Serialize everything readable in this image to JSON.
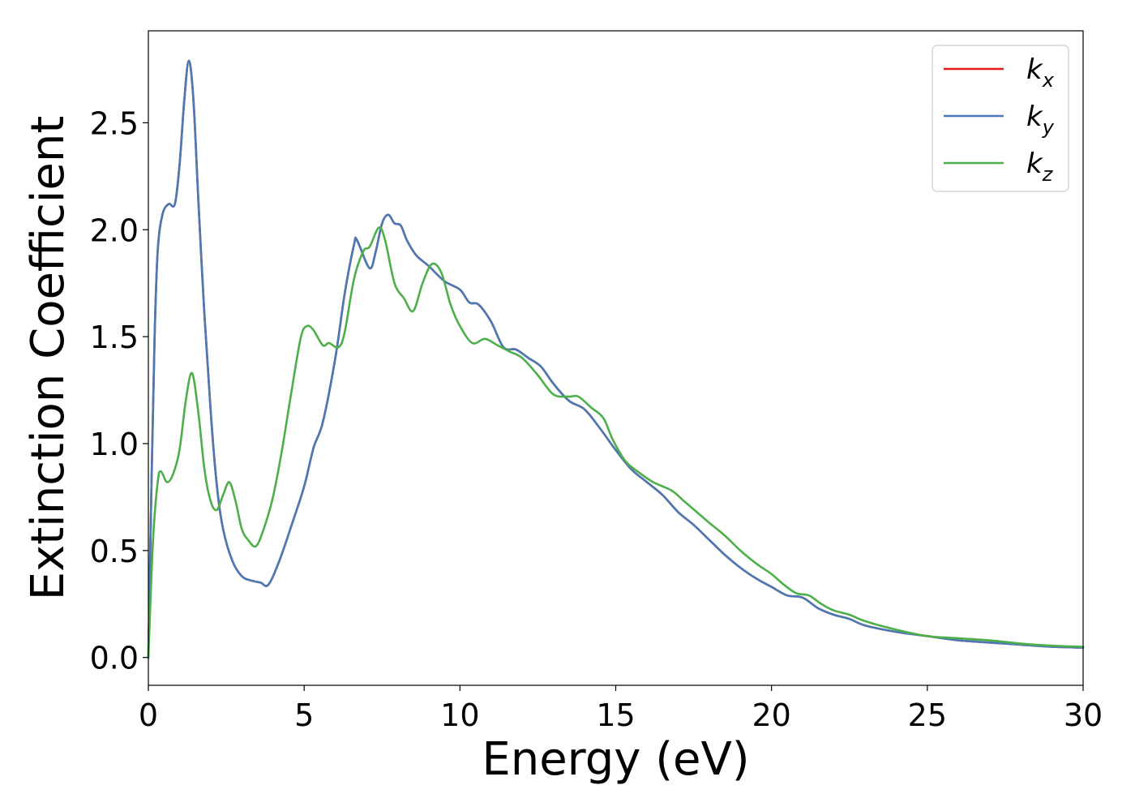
{
  "chart_data": {
    "type": "line",
    "title": "",
    "xlabel": "Energy (eV)",
    "ylabel": "Extinction Coefficient",
    "xlim": [
      0,
      30
    ],
    "ylim": [
      -0.13,
      2.93
    ],
    "xticks": [
      0,
      5,
      10,
      15,
      20,
      25,
      30
    ],
    "xtick_labels": [
      "0",
      "5",
      "10",
      "15",
      "20",
      "25",
      "30"
    ],
    "yticks": [
      0.0,
      0.5,
      1.0,
      1.5,
      2.0,
      2.5
    ],
    "ytick_labels": [
      "0.0",
      "0.5",
      "1.0",
      "1.5",
      "2.0",
      "2.5"
    ],
    "grid": false,
    "legend_position": "top-right",
    "series": [
      {
        "name": "k_x",
        "label_base": "k",
        "label_sub": "x",
        "color": "#e41a1c",
        "points": [
          [
            0,
            0
          ],
          [
            0.1,
            0.8
          ],
          [
            0.2,
            1.5
          ],
          [
            0.3,
            1.9
          ],
          [
            0.45,
            2.07
          ],
          [
            0.65,
            2.12
          ],
          [
            0.85,
            2.12
          ],
          [
            1.0,
            2.3
          ],
          [
            1.15,
            2.6
          ],
          [
            1.3,
            2.79
          ],
          [
            1.45,
            2.6
          ],
          [
            1.6,
            2.15
          ],
          [
            1.8,
            1.6
          ],
          [
            2.0,
            1.15
          ],
          [
            2.2,
            0.8
          ],
          [
            2.4,
            0.6
          ],
          [
            2.7,
            0.45
          ],
          [
            3.0,
            0.38
          ],
          [
            3.3,
            0.36
          ],
          [
            3.6,
            0.35
          ],
          [
            3.85,
            0.34
          ],
          [
            4.2,
            0.45
          ],
          [
            4.6,
            0.62
          ],
          [
            5.0,
            0.8
          ],
          [
            5.3,
            0.98
          ],
          [
            5.6,
            1.1
          ],
          [
            6.0,
            1.4
          ],
          [
            6.3,
            1.7
          ],
          [
            6.6,
            1.93
          ],
          [
            6.7,
            1.95
          ],
          [
            7.1,
            1.82
          ],
          [
            7.3,
            1.9
          ],
          [
            7.5,
            2.03
          ],
          [
            7.7,
            2.07
          ],
          [
            7.9,
            2.03
          ],
          [
            8.1,
            2.02
          ],
          [
            8.3,
            1.95
          ],
          [
            8.6,
            1.88
          ],
          [
            9.0,
            1.83
          ],
          [
            9.5,
            1.76
          ],
          [
            10.0,
            1.72
          ],
          [
            10.3,
            1.66
          ],
          [
            10.6,
            1.65
          ],
          [
            11.0,
            1.57
          ],
          [
            11.4,
            1.45
          ],
          [
            11.8,
            1.44
          ],
          [
            12.2,
            1.4
          ],
          [
            12.6,
            1.36
          ],
          [
            13.0,
            1.28
          ],
          [
            13.5,
            1.2
          ],
          [
            14.0,
            1.16
          ],
          [
            14.5,
            1.07
          ],
          [
            15.0,
            0.97
          ],
          [
            15.5,
            0.88
          ],
          [
            16.0,
            0.82
          ],
          [
            16.5,
            0.76
          ],
          [
            17.0,
            0.68
          ],
          [
            17.5,
            0.62
          ],
          [
            18.0,
            0.55
          ],
          [
            18.5,
            0.48
          ],
          [
            19.0,
            0.42
          ],
          [
            19.5,
            0.37
          ],
          [
            20.0,
            0.33
          ],
          [
            20.5,
            0.29
          ],
          [
            21.0,
            0.28
          ],
          [
            21.5,
            0.23
          ],
          [
            22.0,
            0.2
          ],
          [
            22.5,
            0.18
          ],
          [
            23.0,
            0.15
          ],
          [
            24.0,
            0.12
          ],
          [
            25.0,
            0.1
          ],
          [
            26.0,
            0.08
          ],
          [
            27.0,
            0.07
          ],
          [
            28.0,
            0.06
          ],
          [
            29.0,
            0.05
          ],
          [
            30.0,
            0.046
          ]
        ]
      },
      {
        "name": "k_y",
        "label_base": "k",
        "label_sub": "y",
        "color": "#4a7ab5",
        "points": [
          [
            0,
            0
          ],
          [
            0.1,
            0.8
          ],
          [
            0.2,
            1.5
          ],
          [
            0.3,
            1.9
          ],
          [
            0.45,
            2.07
          ],
          [
            0.65,
            2.12
          ],
          [
            0.85,
            2.12
          ],
          [
            1.0,
            2.3
          ],
          [
            1.15,
            2.6
          ],
          [
            1.3,
            2.79
          ],
          [
            1.45,
            2.6
          ],
          [
            1.6,
            2.15
          ],
          [
            1.8,
            1.6
          ],
          [
            2.0,
            1.15
          ],
          [
            2.2,
            0.8
          ],
          [
            2.4,
            0.6
          ],
          [
            2.7,
            0.45
          ],
          [
            3.0,
            0.38
          ],
          [
            3.3,
            0.36
          ],
          [
            3.6,
            0.35
          ],
          [
            3.85,
            0.34
          ],
          [
            4.2,
            0.45
          ],
          [
            4.6,
            0.62
          ],
          [
            5.0,
            0.8
          ],
          [
            5.3,
            0.98
          ],
          [
            5.6,
            1.1
          ],
          [
            6.0,
            1.4
          ],
          [
            6.3,
            1.7
          ],
          [
            6.6,
            1.93
          ],
          [
            6.7,
            1.95
          ],
          [
            7.1,
            1.82
          ],
          [
            7.3,
            1.9
          ],
          [
            7.5,
            2.03
          ],
          [
            7.7,
            2.07
          ],
          [
            7.9,
            2.03
          ],
          [
            8.1,
            2.02
          ],
          [
            8.3,
            1.95
          ],
          [
            8.6,
            1.88
          ],
          [
            9.0,
            1.83
          ],
          [
            9.5,
            1.76
          ],
          [
            10.0,
            1.72
          ],
          [
            10.3,
            1.66
          ],
          [
            10.6,
            1.65
          ],
          [
            11.0,
            1.57
          ],
          [
            11.4,
            1.45
          ],
          [
            11.8,
            1.44
          ],
          [
            12.2,
            1.4
          ],
          [
            12.6,
            1.36
          ],
          [
            13.0,
            1.28
          ],
          [
            13.5,
            1.2
          ],
          [
            14.0,
            1.16
          ],
          [
            14.5,
            1.07
          ],
          [
            15.0,
            0.97
          ],
          [
            15.5,
            0.88
          ],
          [
            16.0,
            0.82
          ],
          [
            16.5,
            0.76
          ],
          [
            17.0,
            0.68
          ],
          [
            17.5,
            0.62
          ],
          [
            18.0,
            0.55
          ],
          [
            18.5,
            0.48
          ],
          [
            19.0,
            0.42
          ],
          [
            19.5,
            0.37
          ],
          [
            20.0,
            0.33
          ],
          [
            20.5,
            0.29
          ],
          [
            21.0,
            0.28
          ],
          [
            21.5,
            0.23
          ],
          [
            22.0,
            0.2
          ],
          [
            22.5,
            0.18
          ],
          [
            23.0,
            0.15
          ],
          [
            24.0,
            0.12
          ],
          [
            25.0,
            0.1
          ],
          [
            26.0,
            0.08
          ],
          [
            27.0,
            0.07
          ],
          [
            28.0,
            0.06
          ],
          [
            29.0,
            0.05
          ],
          [
            30.0,
            0.046
          ]
        ]
      },
      {
        "name": "k_z",
        "label_base": "k",
        "label_sub": "z",
        "color": "#4daf4a",
        "points": [
          [
            0,
            0
          ],
          [
            0.15,
            0.55
          ],
          [
            0.3,
            0.82
          ],
          [
            0.4,
            0.87
          ],
          [
            0.6,
            0.82
          ],
          [
            0.8,
            0.86
          ],
          [
            1.0,
            0.97
          ],
          [
            1.2,
            1.2
          ],
          [
            1.4,
            1.33
          ],
          [
            1.6,
            1.15
          ],
          [
            1.8,
            0.88
          ],
          [
            2.0,
            0.73
          ],
          [
            2.2,
            0.69
          ],
          [
            2.4,
            0.76
          ],
          [
            2.6,
            0.82
          ],
          [
            2.8,
            0.73
          ],
          [
            3.0,
            0.6
          ],
          [
            3.2,
            0.55
          ],
          [
            3.45,
            0.52
          ],
          [
            3.7,
            0.6
          ],
          [
            4.0,
            0.75
          ],
          [
            4.3,
            0.98
          ],
          [
            4.6,
            1.25
          ],
          [
            4.9,
            1.5
          ],
          [
            5.1,
            1.55
          ],
          [
            5.3,
            1.53
          ],
          [
            5.6,
            1.46
          ],
          [
            5.8,
            1.47
          ],
          [
            6.1,
            1.45
          ],
          [
            6.3,
            1.52
          ],
          [
            6.6,
            1.77
          ],
          [
            6.9,
            1.9
          ],
          [
            7.1,
            1.92
          ],
          [
            7.4,
            2.01
          ],
          [
            7.6,
            1.95
          ],
          [
            7.9,
            1.75
          ],
          [
            8.2,
            1.68
          ],
          [
            8.5,
            1.62
          ],
          [
            8.8,
            1.75
          ],
          [
            9.1,
            1.84
          ],
          [
            9.4,
            1.8
          ],
          [
            9.7,
            1.65
          ],
          [
            10.0,
            1.55
          ],
          [
            10.4,
            1.47
          ],
          [
            10.8,
            1.49
          ],
          [
            11.2,
            1.46
          ],
          [
            11.6,
            1.43
          ],
          [
            12.0,
            1.4
          ],
          [
            12.5,
            1.32
          ],
          [
            13.0,
            1.23
          ],
          [
            13.5,
            1.22
          ],
          [
            13.8,
            1.22
          ],
          [
            14.2,
            1.17
          ],
          [
            14.6,
            1.12
          ],
          [
            14.9,
            1.02
          ],
          [
            15.3,
            0.92
          ],
          [
            15.7,
            0.87
          ],
          [
            16.2,
            0.82
          ],
          [
            16.8,
            0.78
          ],
          [
            17.2,
            0.73
          ],
          [
            17.6,
            0.68
          ],
          [
            18.0,
            0.63
          ],
          [
            18.5,
            0.57
          ],
          [
            19.0,
            0.5
          ],
          [
            19.5,
            0.44
          ],
          [
            20.0,
            0.39
          ],
          [
            20.4,
            0.34
          ],
          [
            20.8,
            0.3
          ],
          [
            21.2,
            0.29
          ],
          [
            21.6,
            0.25
          ],
          [
            22.0,
            0.22
          ],
          [
            22.5,
            0.2
          ],
          [
            23.0,
            0.17
          ],
          [
            24.0,
            0.13
          ],
          [
            25.0,
            0.1
          ],
          [
            26.0,
            0.09
          ],
          [
            27.0,
            0.08
          ],
          [
            28.0,
            0.065
          ],
          [
            29.0,
            0.055
          ],
          [
            30.0,
            0.05
          ]
        ]
      }
    ]
  }
}
